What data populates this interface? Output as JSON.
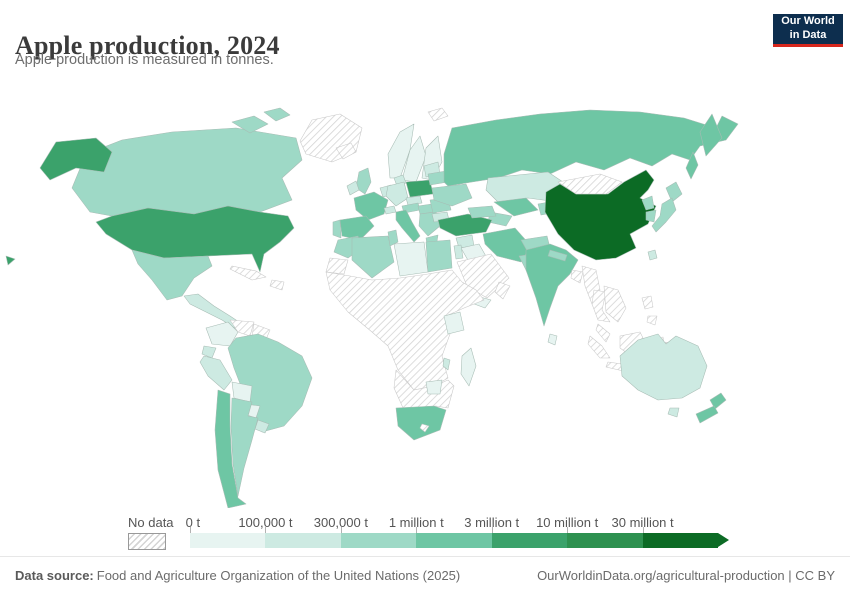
{
  "header": {
    "title": "Apple production, 2024",
    "subtitle": "Apple production is measured in tonnes.",
    "logo": {
      "line1": "Our World",
      "line2": "in Data"
    }
  },
  "palette": {
    "c0": "#e7f4f1",
    "c1": "#cdeae2",
    "c2": "#9ed9c6",
    "c3": "#6ec6a4",
    "c4": "#3ba26b",
    "c5": "#2e9150",
    "c6": "#0c6b25",
    "no_data_hatch_line": "#d4d4d4",
    "logo_navy": "#0d2e4e",
    "logo_red": "#d7271d"
  },
  "legend": {
    "no_data_label": "No data",
    "bins": [
      {
        "label": "0 t",
        "color": "c0"
      },
      {
        "label": "100,000 t",
        "color": "c1"
      },
      {
        "label": "300,000 t",
        "color": "c2"
      },
      {
        "label": "1 million t",
        "color": "c3"
      },
      {
        "label": "3 million t",
        "color": "c4"
      },
      {
        "label": "10 million t",
        "color": "c5"
      },
      {
        "label": "30 million t",
        "color": "c6"
      }
    ]
  },
  "footer": {
    "source_label": "Data source:",
    "source_text": "Food and Agriculture Organization of the United Nations (2025)",
    "right_text": "OurWorldinData.org/agricultural-production | CC BY"
  },
  "chart_data": {
    "type": "choropleth",
    "title": "Apple production, 2024",
    "unit": "tonnes",
    "scale_bins": [
      "0 t",
      "100,000 t",
      "300,000 t",
      "1 million t",
      "3 million t",
      "10 million t",
      "30 million t"
    ],
    "legend_position": "bottom",
    "countries": [
      {
        "id": "usa",
        "name": "United States",
        "bin": "3-10 million t",
        "color": "c4"
      },
      {
        "id": "canada",
        "name": "Canada",
        "bin": "300,000-1 million t",
        "color": "c2"
      },
      {
        "id": "mexico",
        "name": "Mexico",
        "bin": "300,000-1 million t",
        "color": "c2"
      },
      {
        "id": "central-america",
        "name": "Central America",
        "bin": "100,000-300,000 t",
        "color": "c1"
      },
      {
        "id": "colombia",
        "name": "Colombia",
        "bin": "0-100,000 t",
        "color": "c0"
      },
      {
        "id": "ecuador",
        "name": "Ecuador",
        "bin": "100,000-300,000 t",
        "color": "c1"
      },
      {
        "id": "peru",
        "name": "Peru",
        "bin": "100,000-300,000 t",
        "color": "c1"
      },
      {
        "id": "bolivia",
        "name": "Bolivia",
        "bin": "0-100,000 t",
        "color": "c0"
      },
      {
        "id": "paraguay",
        "name": "Paraguay",
        "bin": "0-100,000 t",
        "color": "c0"
      },
      {
        "id": "uruguay",
        "name": "Uruguay",
        "bin": "100,000-300,000 t",
        "color": "c1"
      },
      {
        "id": "brazil",
        "name": "Brazil",
        "bin": "300,000-1 million t",
        "color": "c2"
      },
      {
        "id": "argentina",
        "name": "Argentina",
        "bin": "300,000-1 million t",
        "color": "c2"
      },
      {
        "id": "chile",
        "name": "Chile",
        "bin": "1-3 million t",
        "color": "c3"
      },
      {
        "id": "norway",
        "name": "Norway",
        "bin": "0-100,000 t",
        "color": "c0"
      },
      {
        "id": "sweden",
        "name": "Sweden",
        "bin": "0-100,000 t",
        "color": "c0"
      },
      {
        "id": "finland",
        "name": "Finland",
        "bin": "0-100,000 t",
        "color": "c0"
      },
      {
        "id": "baltics",
        "name": "Baltic states",
        "bin": "100,000-300,000 t",
        "color": "c1"
      },
      {
        "id": "denmark",
        "name": "Denmark",
        "bin": "100,000-300,000 t",
        "color": "c1"
      },
      {
        "id": "uk",
        "name": "United Kingdom",
        "bin": "300,000-1 million t",
        "color": "c2"
      },
      {
        "id": "ireland",
        "name": "Ireland",
        "bin": "100,000-300,000 t",
        "color": "c1"
      },
      {
        "id": "benelux",
        "name": "Belgium/Netherlands",
        "bin": "100,000-300,000 t",
        "color": "c1"
      },
      {
        "id": "france",
        "name": "France",
        "bin": "1-3 million t",
        "color": "c3"
      },
      {
        "id": "germany",
        "name": "Germany",
        "bin": "100,000-300,000 t",
        "color": "c1"
      },
      {
        "id": "poland",
        "name": "Poland",
        "bin": "3-10 million t",
        "color": "c4"
      },
      {
        "id": "czechia",
        "name": "Czechia",
        "bin": "100,000-300,000 t",
        "color": "c1"
      },
      {
        "id": "austria",
        "name": "Austria",
        "bin": "300,000-1 million t",
        "color": "c2"
      },
      {
        "id": "switzerland",
        "name": "Switzerland",
        "bin": "100,000-300,000 t",
        "color": "c1"
      },
      {
        "id": "spain",
        "name": "Spain",
        "bin": "1-3 million t",
        "color": "c3"
      },
      {
        "id": "portugal",
        "name": "Portugal",
        "bin": "300,000-1 million t",
        "color": "c2"
      },
      {
        "id": "italy",
        "name": "Italy",
        "bin": "1-3 million t",
        "color": "c3"
      },
      {
        "id": "hungary",
        "name": "Hungary",
        "bin": "300,000-1 million t",
        "color": "c2"
      },
      {
        "id": "balkans",
        "name": "Balkans",
        "bin": "300,000-1 million t",
        "color": "c2"
      },
      {
        "id": "greece",
        "name": "Greece",
        "bin": "300,000-1 million t",
        "color": "c2"
      },
      {
        "id": "romania",
        "name": "Romania",
        "bin": "300,000-1 million t",
        "color": "c2"
      },
      {
        "id": "bulgaria",
        "name": "Bulgaria",
        "bin": "100,000-300,000 t",
        "color": "c1"
      },
      {
        "id": "ukraine",
        "name": "Ukraine",
        "bin": "300,000-1 million t",
        "color": "c2"
      },
      {
        "id": "belarus",
        "name": "Belarus",
        "bin": "300,000-1 million t",
        "color": "c2"
      },
      {
        "id": "russia",
        "name": "Russia",
        "bin": "1-3 million t",
        "color": "c3"
      },
      {
        "id": "turkey",
        "name": "Turkey",
        "bin": "3-10 million t",
        "color": "c4"
      },
      {
        "id": "caucasus",
        "name": "Caucasus",
        "bin": "300,000-1 million t",
        "color": "c2"
      },
      {
        "id": "syria",
        "name": "Syria",
        "bin": "100,000-300,000 t",
        "color": "c1"
      },
      {
        "id": "iraq",
        "name": "Iraq",
        "bin": "0-100,000 t",
        "color": "c0"
      },
      {
        "id": "levant",
        "name": "Israel/Jordan",
        "bin": "100,000-300,000 t",
        "color": "c1"
      },
      {
        "id": "yemen",
        "name": "Yemen",
        "bin": "0-100,000 t",
        "color": "c0"
      },
      {
        "id": "iran",
        "name": "Iran",
        "bin": "1-3 million t",
        "color": "c3"
      },
      {
        "id": "afghanistan",
        "name": "Afghanistan",
        "bin": "300,000-1 million t",
        "color": "c2"
      },
      {
        "id": "pakistan",
        "name": "Pakistan",
        "bin": "300,000-1 million t",
        "color": "c2"
      },
      {
        "id": "kazakhstan",
        "name": "Kazakhstan",
        "bin": "100,000-300,000 t",
        "color": "c1"
      },
      {
        "id": "uzbekistan",
        "name": "Uzbekistan",
        "bin": "1-3 million t",
        "color": "c3"
      },
      {
        "id": "turkmenistan",
        "name": "Turkmenistan",
        "bin": "300,000-1 million t",
        "color": "c2"
      },
      {
        "id": "kyrgyzstan-tajikistan",
        "name": "Kyrgyzstan/Tajikistan",
        "bin": "300,000-1 million t",
        "color": "c2"
      },
      {
        "id": "china",
        "name": "China",
        "bin": "30+ million t",
        "color": "c6"
      },
      {
        "id": "india",
        "name": "India",
        "bin": "1-3 million t",
        "color": "c3"
      },
      {
        "id": "nepal",
        "name": "Nepal",
        "bin": "300,000-1 million t",
        "color": "c2"
      },
      {
        "id": "sri-lanka",
        "name": "Sri Lanka",
        "bin": "0-100,000 t",
        "color": "c0"
      },
      {
        "id": "japan",
        "name": "Japan",
        "bin": "300,000-1 million t",
        "color": "c2"
      },
      {
        "id": "north-korea",
        "name": "North Korea",
        "bin": "300,000-1 million t",
        "color": "c2"
      },
      {
        "id": "south-korea",
        "name": "South Korea",
        "bin": "300,000-1 million t",
        "color": "c2"
      },
      {
        "id": "taiwan",
        "name": "Taiwan",
        "bin": "100,000-300,000 t",
        "color": "c1"
      },
      {
        "id": "morocco",
        "name": "Morocco",
        "bin": "300,000-1 million t",
        "color": "c2"
      },
      {
        "id": "algeria",
        "name": "Algeria",
        "bin": "300,000-1 million t",
        "color": "c2"
      },
      {
        "id": "tunisia",
        "name": "Tunisia",
        "bin": "300,000-1 million t",
        "color": "c2"
      },
      {
        "id": "libya",
        "name": "Libya",
        "bin": "0-100,000 t",
        "color": "c0"
      },
      {
        "id": "egypt",
        "name": "Egypt",
        "bin": "300,000-1 million t",
        "color": "c2"
      },
      {
        "id": "kenya",
        "name": "Kenya",
        "bin": "0-100,000 t",
        "color": "c0"
      },
      {
        "id": "zimbabwe",
        "name": "Zimbabwe",
        "bin": "0-100,000 t",
        "color": "c0"
      },
      {
        "id": "malawi",
        "name": "Malawi",
        "bin": "100,000-300,000 t",
        "color": "c1"
      },
      {
        "id": "south-africa",
        "name": "South Africa",
        "bin": "1-3 million t",
        "color": "c3"
      },
      {
        "id": "madagascar",
        "name": "Madagascar",
        "bin": "0-100,000 t",
        "color": "c0"
      },
      {
        "id": "australia",
        "name": "Australia",
        "bin": "100,000-300,000 t",
        "color": "c1"
      },
      {
        "id": "new-zealand",
        "name": "New Zealand",
        "bin": "1-3 million t",
        "color": "c3"
      }
    ],
    "no_data_ids": [
      "greenland",
      "iceland",
      "svalbard",
      "cuba",
      "hispaniola",
      "venezuela",
      "guyanas",
      "saudi",
      "oman",
      "mongolia",
      "bangladesh",
      "myanmar",
      "thailand",
      "indochina",
      "malay",
      "sumatra",
      "java",
      "borneo",
      "sulawesi",
      "new-guinea",
      "philippines",
      "west-sahara",
      "africa-hatch",
      "southern-africa",
      "lesotho"
    ]
  }
}
